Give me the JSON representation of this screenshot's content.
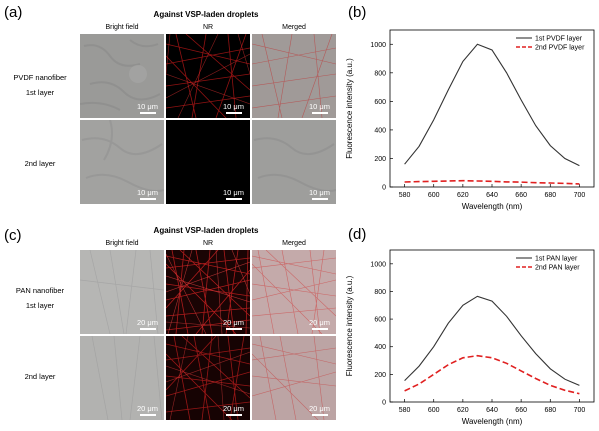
{
  "panels": [
    {
      "label": "(a)",
      "title": "Against VSP-laden droplets",
      "columns": [
        "Bright field",
        "NR",
        "Merged"
      ],
      "rows": [
        {
          "label_line1": "PVDF nanofiber",
          "label_line2": "1st layer"
        },
        {
          "label_line1": "2nd layer",
          "label_line2": ""
        }
      ],
      "scale_bar": "10 μm"
    },
    {
      "label": "(c)",
      "title": "Against VSP-laden droplets",
      "columns": [
        "Bright field",
        "NR",
        "Merged"
      ],
      "rows": [
        {
          "label_line1": "PAN nanofiber",
          "label_line2": "1st layer"
        },
        {
          "label_line1": "2nd layer",
          "label_line2": ""
        }
      ],
      "scale_bar": "20 μm"
    }
  ],
  "image_tones": {
    "bright": "#9a9a98",
    "nr_dense": "#c01818",
    "nr_dark": "#000000",
    "merged": "#b49a98"
  },
  "chart_data": [
    {
      "panel_label": "(b)",
      "type": "line",
      "xlabel": "Wavelength (nm)",
      "ylabel": "Fluorescence intensity (a.u.)",
      "xlim": [
        570,
        710
      ],
      "ylim": [
        0,
        1100
      ],
      "xticks": [
        580,
        600,
        620,
        640,
        660,
        680,
        700
      ],
      "yticks": [
        0,
        200,
        400,
        600,
        800,
        1000
      ],
      "legend_position": "top-right",
      "grid": false,
      "series": [
        {
          "name": "1st PVDF layer",
          "color": "#333333",
          "dash": "solid",
          "x": [
            580,
            590,
            600,
            610,
            620,
            630,
            640,
            650,
            660,
            670,
            680,
            690,
            700
          ],
          "y": [
            160,
            285,
            470,
            680,
            880,
            1000,
            960,
            800,
            610,
            430,
            290,
            200,
            150
          ]
        },
        {
          "name": "2nd PVDF layer",
          "color": "#e02020",
          "dash": "dashed",
          "x": [
            580,
            590,
            600,
            610,
            620,
            630,
            640,
            650,
            660,
            670,
            680,
            690,
            700
          ],
          "y": [
            35,
            38,
            40,
            42,
            44,
            42,
            40,
            36,
            34,
            30,
            28,
            25,
            22
          ]
        }
      ]
    },
    {
      "panel_label": "(d)",
      "type": "line",
      "xlabel": "Wavelength (nm)",
      "ylabel": "Fluorescence intensity (a.u.)",
      "xlim": [
        570,
        710
      ],
      "ylim": [
        0,
        1100
      ],
      "xticks": [
        580,
        600,
        620,
        640,
        660,
        680,
        700
      ],
      "yticks": [
        0,
        200,
        400,
        600,
        800,
        1000
      ],
      "legend_position": "top-right",
      "grid": false,
      "series": [
        {
          "name": "1st PAN layer",
          "color": "#333333",
          "dash": "solid",
          "x": [
            580,
            590,
            600,
            610,
            620,
            630,
            640,
            650,
            660,
            670,
            680,
            690,
            700
          ],
          "y": [
            155,
            260,
            400,
            570,
            700,
            765,
            730,
            620,
            480,
            350,
            240,
            165,
            120
          ]
        },
        {
          "name": "2nd PAN layer",
          "color": "#e02020",
          "dash": "dashed",
          "x": [
            580,
            590,
            600,
            610,
            620,
            630,
            640,
            650,
            660,
            670,
            680,
            690,
            700
          ],
          "y": [
            80,
            130,
            200,
            270,
            320,
            335,
            320,
            280,
            225,
            170,
            120,
            85,
            60
          ]
        }
      ]
    }
  ]
}
